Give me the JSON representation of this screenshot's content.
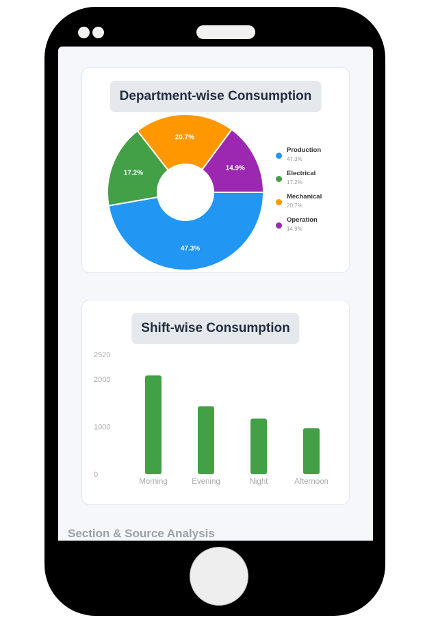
{
  "department_card": {
    "title": "Department-wise Consumption",
    "chart_data": {
      "type": "pie",
      "donut": true,
      "title": "Department-wise Consumption",
      "labels": [
        "Production",
        "Electrical",
        "Mechanical",
        "Operation"
      ],
      "values": [
        47.3,
        17.2,
        20.7,
        14.9
      ],
      "value_labels": [
        "47.3%",
        "17.2%",
        "20.7%",
        "14.9%"
      ],
      "colors": [
        "#2196f3",
        "#43a047",
        "#ff9800",
        "#9c27b0"
      ],
      "legend_position": "right"
    }
  },
  "shift_card": {
    "title": "Shift-wise Consumption",
    "chart_data": {
      "type": "bar",
      "title": "Shift-wise Consumption",
      "categories": [
        "Morning",
        "Evening",
        "Night",
        "Afternoon"
      ],
      "values": [
        2080,
        1430,
        1170,
        970
      ],
      "yticks": [
        0,
        1000,
        2000,
        2520
      ],
      "ytick_labels": [
        "0",
        "1000",
        "2000",
        "2520"
      ],
      "ylim": [
        0,
        2520
      ],
      "color": "#43a047",
      "grid": false
    }
  },
  "next_section_title": "Section & Source Analysis"
}
